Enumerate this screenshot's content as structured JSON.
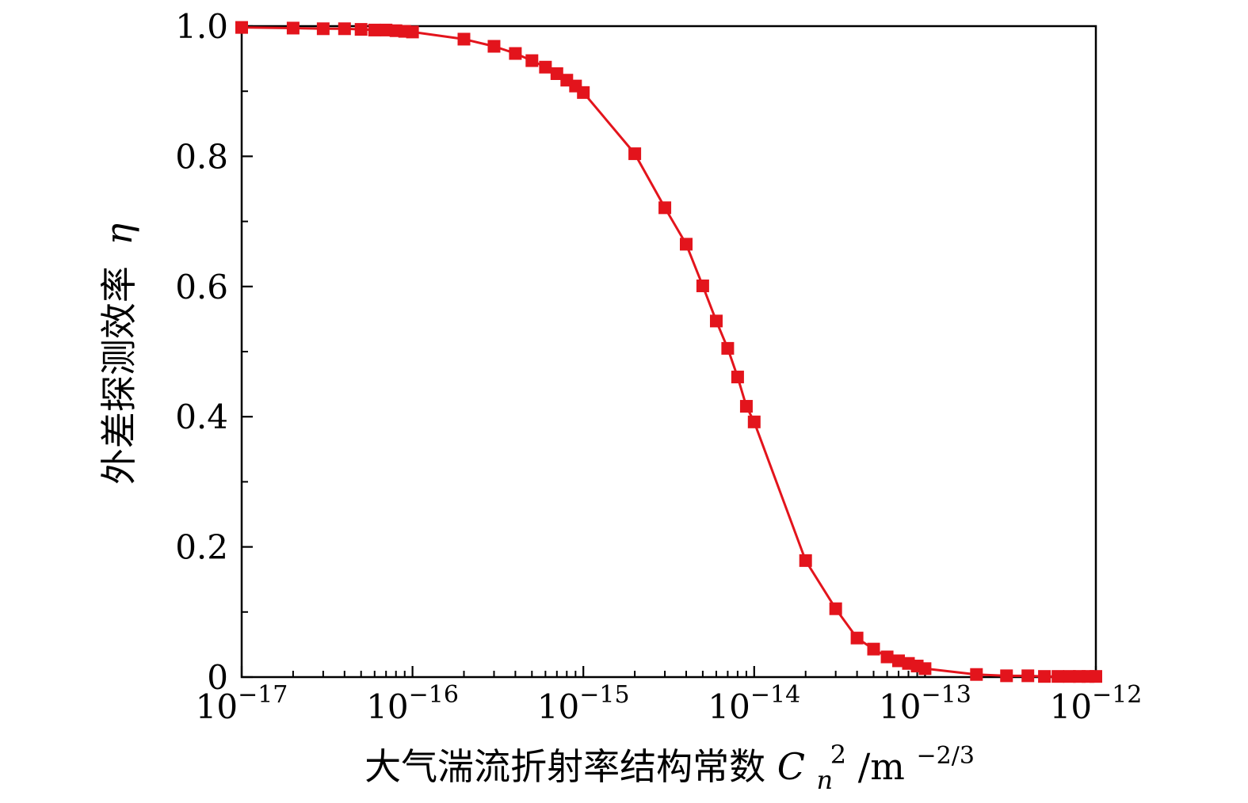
{
  "chart_data": {
    "type": "line",
    "x_scale": "log",
    "xlim": [
      1e-17,
      1e-12
    ],
    "ylim": [
      0,
      1.0
    ],
    "grid": false,
    "xlabel": {
      "text": "大气湍流折射率结构常数",
      "symbol": "C",
      "subscript": "n",
      "superscript": "2",
      "unit": "/m",
      "unit_exponent": "−2/3"
    },
    "ylabel": {
      "text": "外差探测效率",
      "symbol": "η"
    },
    "xticks": [
      1e-17,
      1e-16,
      1e-15,
      1e-14,
      1e-13,
      1e-12
    ],
    "xtick_labels": [
      {
        "base": "10",
        "exponent": "−17"
      },
      {
        "base": "10",
        "exponent": "−16"
      },
      {
        "base": "10",
        "exponent": "−15"
      },
      {
        "base": "10",
        "exponent": "−14"
      },
      {
        "base": "10",
        "exponent": "−13"
      },
      {
        "base": "10",
        "exponent": "−12"
      }
    ],
    "yticks": [
      0,
      0.2,
      0.4,
      0.6,
      0.8,
      1.0
    ],
    "ytick_labels": [
      "0",
      "0.2",
      "0.4",
      "0.6",
      "0.8",
      "1.0"
    ],
    "series": [
      {
        "color": "#e3141c",
        "marker": "square",
        "x": [
          1e-17,
          2e-17,
          3e-17,
          4e-17,
          5e-17,
          6e-17,
          7e-17,
          8e-17,
          9e-17,
          1e-16,
          2e-16,
          3e-16,
          4e-16,
          5e-16,
          6e-16,
          7e-16,
          8e-16,
          9e-16,
          1e-15,
          2e-15,
          3e-15,
          4e-15,
          5e-15,
          6e-15,
          7e-15,
          8e-15,
          9e-15,
          1e-14,
          2e-14,
          3e-14,
          4e-14,
          5e-14,
          6e-14,
          7e-14,
          8e-14,
          9e-14,
          1e-13,
          2e-13,
          3e-13,
          4e-13,
          5e-13,
          6e-13,
          7e-13,
          8e-13,
          9e-13,
          1e-12
        ],
        "y": [
          0.998,
          0.997,
          0.996,
          0.996,
          0.995,
          0.994,
          0.994,
          0.993,
          0.992,
          0.991,
          0.98,
          0.969,
          0.958,
          0.947,
          0.937,
          0.927,
          0.917,
          0.908,
          0.898,
          0.804,
          0.721,
          0.665,
          0.601,
          0.547,
          0.505,
          0.461,
          0.416,
          0.392,
          0.179,
          0.105,
          0.06,
          0.043,
          0.031,
          0.025,
          0.021,
          0.017,
          0.013,
          0.004,
          0.002,
          0.002,
          0.001,
          0.001,
          0.001,
          0.001,
          0.001,
          0.001
        ]
      }
    ]
  }
}
